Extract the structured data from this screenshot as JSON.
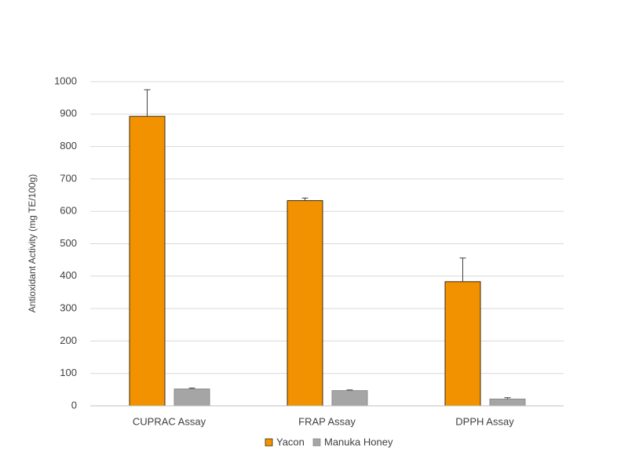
{
  "chart_data": {
    "type": "bar",
    "y_label": "Antioxidant Activity (mg TE/100g)",
    "categories": [
      "CUPRAC Assay",
      "FRAP Assay",
      "DPPH Assay"
    ],
    "series": [
      {
        "name": "Yacon",
        "color": "#f39200",
        "values": [
          893,
          633,
          383
        ],
        "errors": [
          82,
          8,
          73
        ]
      },
      {
        "name": "Manuka Honey",
        "color": "#a5a5a5",
        "values": [
          52,
          47,
          21
        ],
        "errors": [
          3,
          2,
          4
        ]
      }
    ],
    "ylim": [
      0,
      1000
    ],
    "yticks": [
      0,
      100,
      200,
      300,
      400,
      500,
      600,
      700,
      800,
      900,
      1000
    ],
    "grid": true,
    "legend": "bottom"
  }
}
